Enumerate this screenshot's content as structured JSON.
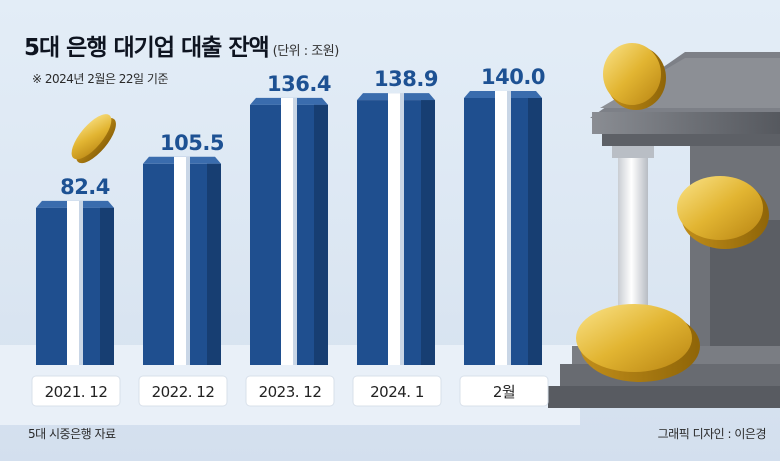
{
  "header": {
    "title": "5대 은행 대기업 대출 잔액",
    "unit": "(단위 : 조원)",
    "note": "※ 2024년 2월은 22일 기준"
  },
  "footer": {
    "source": "5대 시중은행 자료",
    "credit": "그래픽 디자인 : 이은경"
  },
  "colors": {
    "bar": "#1f4f8f",
    "bar_dark": "#173e72",
    "bar_top": "#3a6cad",
    "ribbon": "#ffffff",
    "value_text": "#1d5193"
  },
  "chart_data": {
    "type": "bar",
    "categories": [
      "2021. 12",
      "2022. 12",
      "2023. 12",
      "2024. 1",
      "2월"
    ],
    "values": [
      82.4,
      105.5,
      136.4,
      138.9,
      140.0
    ],
    "value_labels": [
      "82.4",
      "105.5",
      "136.4",
      "138.9",
      "140.0"
    ],
    "unit": "조원",
    "grid": false,
    "legend": "none"
  }
}
